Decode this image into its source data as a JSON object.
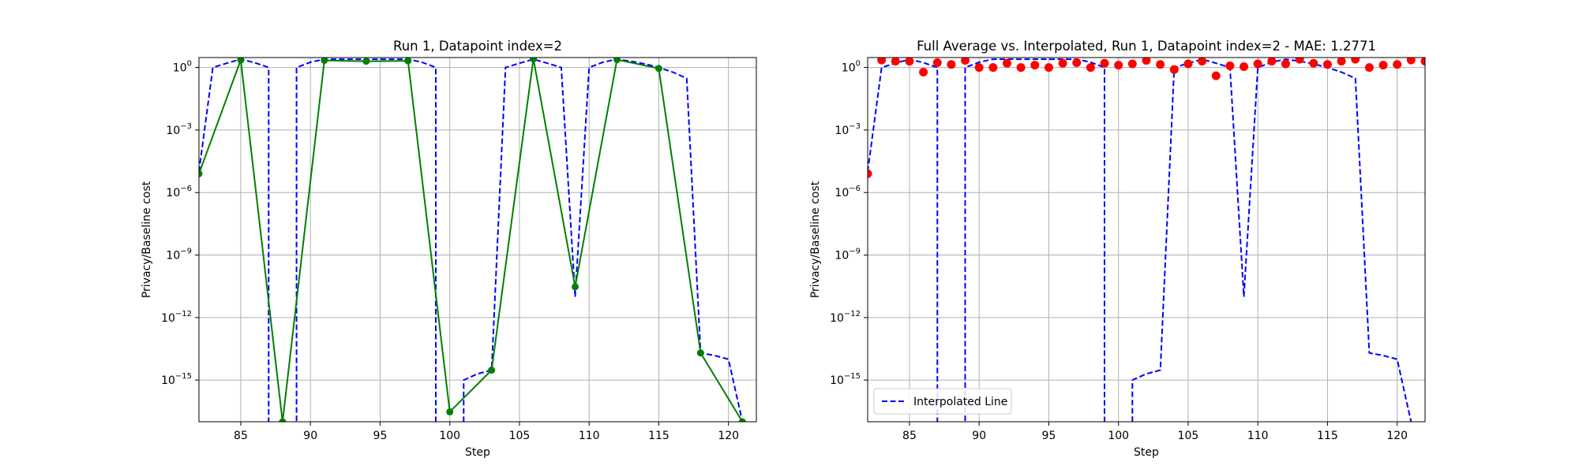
{
  "chart_data": [
    {
      "type": "line",
      "title": "Run 1, Datapoint index=2",
      "xlabel": "Step",
      "ylabel": "Privacy/Baseline cost",
      "yscale": "log",
      "xlim": [
        82,
        122
      ],
      "ylim": [
        1e-17,
        3
      ],
      "xticks": [
        85,
        90,
        95,
        100,
        105,
        110,
        115,
        120
      ],
      "yticks": [
        {
          "value": 1,
          "base": "10",
          "exp": "0"
        },
        {
          "value": 0.001,
          "base": "10",
          "exp": "−3"
        },
        {
          "value": 1e-06,
          "base": "10",
          "exp": "−6"
        },
        {
          "value": 1e-09,
          "base": "10",
          "exp": "−9"
        },
        {
          "value": 1e-12,
          "base": "10",
          "exp": "−12"
        },
        {
          "value": 1e-15,
          "base": "10",
          "exp": "−15"
        }
      ],
      "grid": true,
      "series": [
        {
          "style": "dashed",
          "color": "#0000ff",
          "x": [
            82,
            83,
            84,
            85,
            86,
            87,
            87,
            89,
            89,
            90,
            91,
            92,
            93,
            94,
            95,
            96,
            97,
            98,
            99,
            99,
            101,
            101,
            102,
            103,
            104,
            105,
            106,
            107,
            108,
            109,
            110,
            111,
            112,
            113,
            114,
            115,
            116,
            117,
            118,
            119,
            120,
            121
          ],
          "y": [
            1e-05,
            1,
            1.6,
            2.5,
            1.7,
            1,
            1e-18,
            1e-18,
            1,
            1.8,
            2.5,
            2.5,
            2.5,
            2.5,
            2.5,
            2.5,
            2.5,
            1.8,
            1,
            1e-18,
            1e-18,
            1e-15,
            2e-15,
            3e-15,
            1,
            1.6,
            2.5,
            1.6,
            1,
            1e-11,
            1,
            1.8,
            2.5,
            2,
            1.5,
            1,
            0.6,
            0.3,
            2e-14,
            1.5e-14,
            1e-14,
            1e-17
          ]
        },
        {
          "style": "solid-markers",
          "color": "#008000",
          "x": [
            82,
            85,
            88,
            91,
            94,
            97,
            100,
            103,
            106,
            109,
            112,
            115,
            118,
            121
          ],
          "y": [
            8e-06,
            2.3,
            1e-17,
            2.2,
            2,
            2.1,
            3e-17,
            3e-15,
            2.6,
            3e-11,
            2.4,
            0.9,
            2e-14,
            1e-17
          ]
        }
      ]
    },
    {
      "type": "line",
      "title": "Full Average vs. Interpolated, Run 1, Datapoint index=2 - MAE: 1.2771",
      "xlabel": "Step",
      "ylabel": "Privacy/Baseline cost",
      "yscale": "log",
      "xlim": [
        82,
        122
      ],
      "ylim": [
        1e-17,
        3
      ],
      "xticks": [
        85,
        90,
        95,
        100,
        105,
        110,
        115,
        120
      ],
      "yticks": [
        {
          "value": 1,
          "base": "10",
          "exp": "0"
        },
        {
          "value": 0.001,
          "base": "10",
          "exp": "−3"
        },
        {
          "value": 1e-06,
          "base": "10",
          "exp": "−6"
        },
        {
          "value": 1e-09,
          "base": "10",
          "exp": "−9"
        },
        {
          "value": 1e-12,
          "base": "10",
          "exp": "−12"
        },
        {
          "value": 1e-15,
          "base": "10",
          "exp": "−15"
        }
      ],
      "grid": true,
      "legend": {
        "placement": "lower-left",
        "entries": [
          "Interpolated Line"
        ]
      },
      "series": [
        {
          "name": "Interpolated Line",
          "style": "dashed",
          "color": "#0000ff",
          "x": [
            82,
            83,
            84,
            85,
            86,
            87,
            87,
            89,
            89,
            90,
            91,
            92,
            93,
            94,
            95,
            96,
            97,
            98,
            99,
            99,
            101,
            101,
            102,
            103,
            104,
            105,
            106,
            107,
            108,
            109,
            110,
            111,
            112,
            113,
            114,
            115,
            116,
            117,
            118,
            119,
            120,
            121
          ],
          "y": [
            1e-05,
            1,
            1.6,
            2.5,
            1.7,
            1,
            1e-18,
            1e-18,
            1,
            1.8,
            2.5,
            2.5,
            2.5,
            2.5,
            2.5,
            2.5,
            2.5,
            1.8,
            1,
            1e-18,
            1e-18,
            1e-15,
            2e-15,
            3e-15,
            1,
            1.6,
            2.5,
            1.6,
            1,
            1e-11,
            1,
            1.8,
            2.5,
            2,
            1.5,
            1,
            0.6,
            0.3,
            2e-14,
            1.5e-14,
            1e-14,
            1e-17
          ]
        },
        {
          "style": "scatter",
          "color": "#ff0000",
          "x": [
            82,
            83,
            84,
            85,
            86,
            87,
            88,
            89,
            90,
            91,
            92,
            93,
            94,
            95,
            96,
            97,
            98,
            99,
            100,
            101,
            102,
            103,
            104,
            105,
            106,
            107,
            108,
            109,
            110,
            111,
            112,
            113,
            114,
            115,
            116,
            117,
            118,
            119,
            120,
            121,
            122
          ],
          "y": [
            8e-06,
            2.3,
            2,
            2,
            0.6,
            1.7,
            1.4,
            2.2,
            1,
            1,
            1.6,
            1,
            1.3,
            1,
            1.6,
            1.7,
            1,
            1.6,
            1.3,
            1.5,
            2.2,
            1.4,
            0.8,
            1.5,
            2,
            0.4,
            1.2,
            1.1,
            1.5,
            2,
            1.5,
            2.5,
            1.6,
            1.4,
            2,
            2.5,
            1,
            1.3,
            1.4,
            2.3,
            2
          ]
        }
      ]
    }
  ]
}
